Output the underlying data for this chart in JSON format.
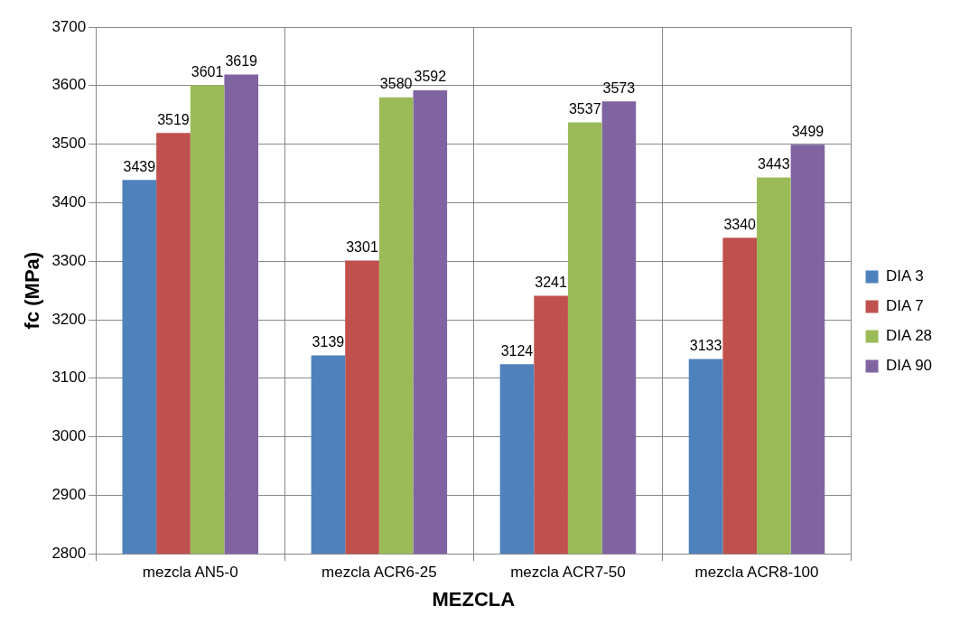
{
  "chart_data": {
    "type": "bar",
    "xlabel": "MEZCLA",
    "ylabel": "fc (MPa)",
    "categories": [
      "mezcla AN5-0",
      "mezcla ACR6-25",
      "mezcla ACR7-50",
      "mezcla ACR8-100"
    ],
    "series": [
      {
        "name": "DIA 3",
        "color": "#4f81bd",
        "values": [
          3439,
          3139,
          3124,
          3133
        ]
      },
      {
        "name": "DIA 7",
        "color": "#c0504d",
        "values": [
          3519,
          3301,
          3241,
          3340
        ]
      },
      {
        "name": "DIA 28",
        "color": "#9bbb59",
        "values": [
          3601,
          3580,
          3537,
          3443
        ]
      },
      {
        "name": "DIA 90",
        "color": "#8064a2",
        "values": [
          3619,
          3592,
          3573,
          3499
        ]
      }
    ],
    "ylim": [
      2800,
      3700
    ],
    "yticks": [
      2800,
      2900,
      3000,
      3100,
      3200,
      3300,
      3400,
      3500,
      3600,
      3700
    ],
    "grid": true,
    "legend": "right",
    "data_labels": true
  }
}
